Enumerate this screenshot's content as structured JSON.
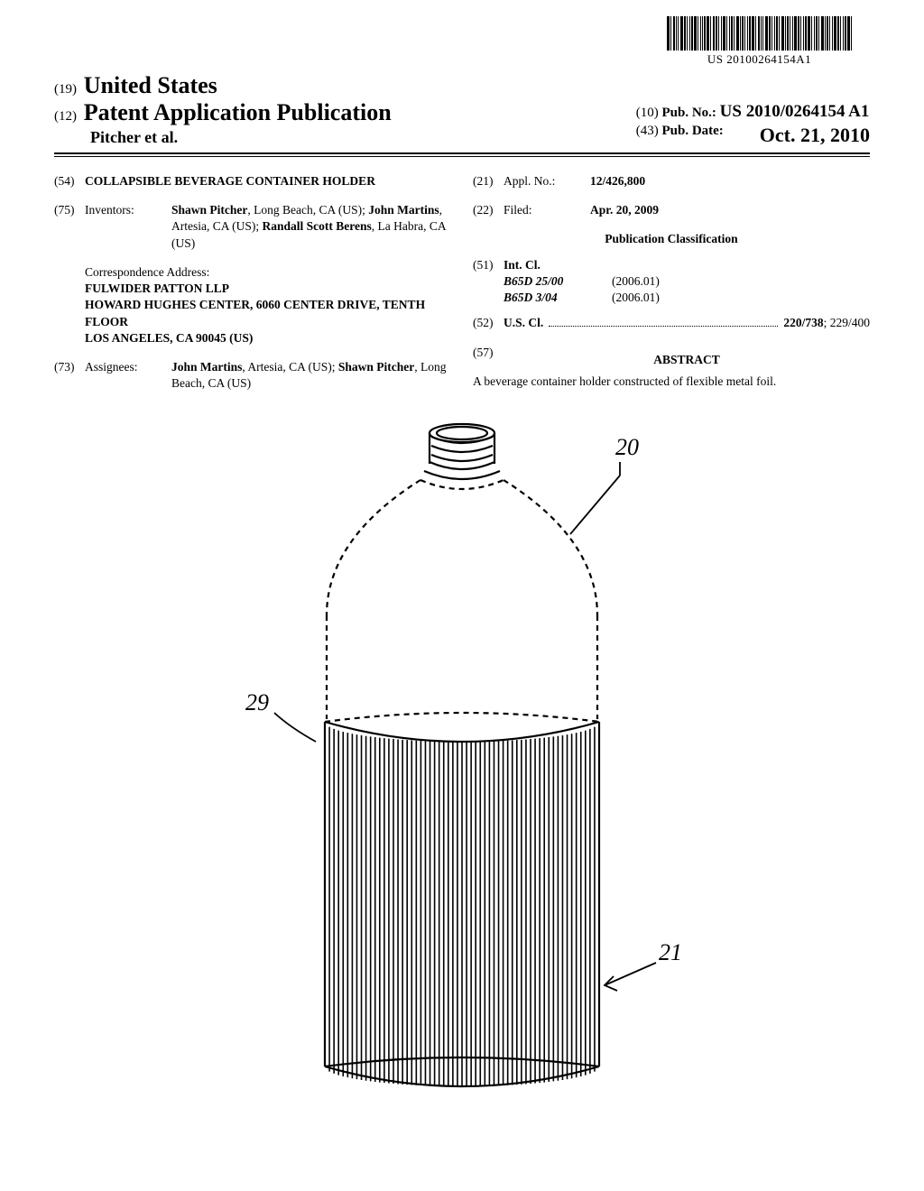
{
  "barcode": {
    "number": "US 20100264154A1",
    "bar_widths": [
      3,
      1,
      2,
      1,
      1,
      3,
      2,
      1,
      1,
      2,
      3,
      1,
      1,
      1,
      2,
      3,
      1,
      2,
      2,
      1,
      1,
      3,
      1,
      1,
      2,
      1,
      3,
      1,
      2,
      1,
      1,
      2,
      3,
      1,
      2,
      1,
      1,
      3,
      2,
      1,
      1,
      2,
      1,
      3,
      1,
      2,
      1,
      1,
      3,
      2,
      1,
      1,
      2,
      3,
      1,
      1,
      2,
      1,
      3,
      1,
      2,
      1,
      1,
      3,
      2,
      1,
      1,
      2,
      3,
      1
    ],
    "bar_gaps": [
      1,
      2,
      1,
      1,
      2,
      1,
      1,
      2,
      1,
      1,
      1,
      2,
      1,
      1,
      1,
      1,
      2,
      1,
      1,
      2,
      1,
      1,
      2,
      1,
      1,
      2,
      1,
      1,
      1,
      2,
      1,
      1,
      1,
      2,
      1,
      1,
      2,
      1,
      1,
      2,
      1,
      1,
      2,
      1,
      1,
      1,
      2,
      1,
      1,
      1,
      2,
      1,
      1,
      1,
      2,
      1,
      1,
      2,
      1,
      1,
      1,
      2,
      1,
      1,
      1,
      2,
      1,
      1,
      1,
      0
    ]
  },
  "header": {
    "code19": "(19)",
    "country": "United States",
    "code12": "(12)",
    "pub_type": "Patent Application Publication",
    "authors": "Pitcher et al.",
    "code10": "(10)",
    "pub_no_label": "Pub. No.:",
    "pub_no": "US 2010/0264154 A1",
    "code43": "(43)",
    "pub_date_label": "Pub. Date:",
    "pub_date": "Oct. 21, 2010"
  },
  "left": {
    "f54": {
      "num": "(54)",
      "title": "COLLAPSIBLE BEVERAGE CONTAINER HOLDER"
    },
    "f75": {
      "num": "(75)",
      "label": "Inventors:",
      "value_html": "<b>Shawn Pitcher</b>, Long Beach, CA (US); <b>John Martins</b>, Artesia, CA (US); <b>Randall Scott Berens</b>, La Habra, CA (US)"
    },
    "corr": {
      "label": "Correspondence Address:",
      "lines": [
        "FULWIDER PATTON LLP",
        "HOWARD HUGHES CENTER, 6060 CENTER DRIVE, TENTH FLOOR",
        "LOS ANGELES, CA 90045 (US)"
      ]
    },
    "f73": {
      "num": "(73)",
      "label": "Assignees:",
      "value_html": "<b>John Martins</b>, Artesia, CA (US); <b>Shawn Pitcher</b>, Long Beach, CA (US)"
    }
  },
  "right": {
    "f21": {
      "num": "(21)",
      "label": "Appl. No.:",
      "value": "12/426,800"
    },
    "f22": {
      "num": "(22)",
      "label": "Filed:",
      "value": "Apr. 20, 2009"
    },
    "pub_class": "Publication Classification",
    "f51": {
      "num": "(51)",
      "label": "Int. Cl.",
      "rows": [
        {
          "code": "B65D 25/00",
          "date": "(2006.01)"
        },
        {
          "code": "B65D 3/04",
          "date": "(2006.01)"
        }
      ]
    },
    "f52": {
      "num": "(52)",
      "label": "U.S. Cl.",
      "value_bold": "220/738",
      "value_rest": "; 229/400"
    },
    "f57": {
      "num": "(57)",
      "heading": "ABSTRACT",
      "text": "A beverage container holder constructed of flexible metal foil."
    }
  },
  "figure": {
    "ref20": "20",
    "ref21": "21",
    "ref29": "29",
    "stroke": "#000000",
    "dash": "6,5"
  }
}
